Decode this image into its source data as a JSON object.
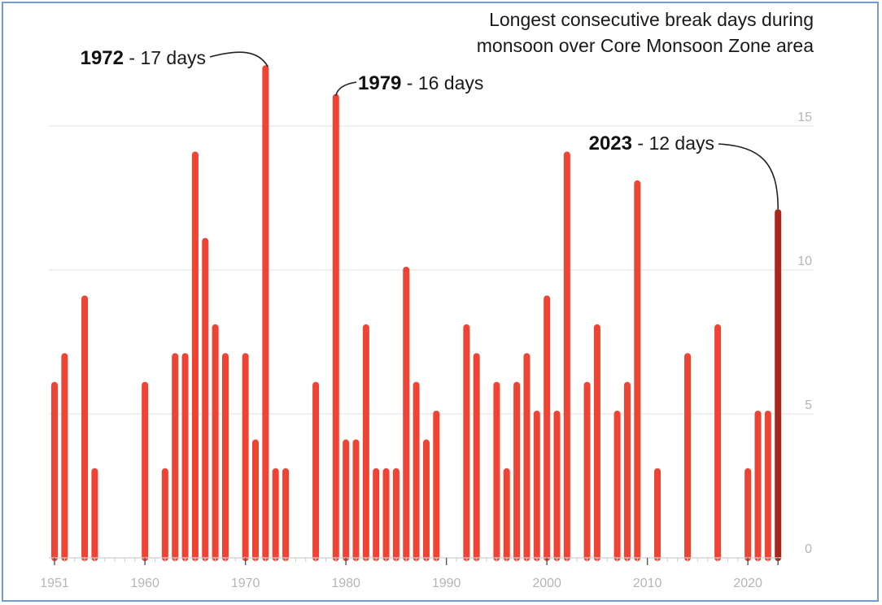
{
  "chart_data": {
    "type": "bar",
    "title_lines": [
      "Longest consecutive break days during",
      "monsoon over Core Monsoon Zone area"
    ],
    "xlabel": "",
    "ylabel": "",
    "xlim": [
      1951,
      2023
    ],
    "ylim": [
      0,
      17
    ],
    "x_ticks": [
      "1951",
      "1960",
      "1970",
      "1980",
      "1990",
      "2000",
      "2010",
      "2020"
    ],
    "y_ticks": [
      "0",
      "5",
      "10",
      "15"
    ],
    "grid": "horizontal",
    "colors": {
      "bar": "#ef4433",
      "highlight": "#a5281d",
      "grid": "#e6e6e6",
      "tick_text": "#b5b5b5",
      "frame": "#6e9ec9"
    },
    "highlight_year": 2023,
    "points": [
      {
        "x": 1951,
        "y": 6
      },
      {
        "x": 1952,
        "y": 7
      },
      {
        "x": 1954,
        "y": 9
      },
      {
        "x": 1955,
        "y": 3
      },
      {
        "x": 1960,
        "y": 6
      },
      {
        "x": 1962,
        "y": 3
      },
      {
        "x": 1963,
        "y": 7
      },
      {
        "x": 1964,
        "y": 7
      },
      {
        "x": 1965,
        "y": 14
      },
      {
        "x": 1966,
        "y": 11
      },
      {
        "x": 1967,
        "y": 8
      },
      {
        "x": 1968,
        "y": 7
      },
      {
        "x": 1970,
        "y": 7
      },
      {
        "x": 1971,
        "y": 4
      },
      {
        "x": 1972,
        "y": 17
      },
      {
        "x": 1973,
        "y": 3
      },
      {
        "x": 1974,
        "y": 3
      },
      {
        "x": 1977,
        "y": 6
      },
      {
        "x": 1979,
        "y": 16
      },
      {
        "x": 1980,
        "y": 4
      },
      {
        "x": 1981,
        "y": 4
      },
      {
        "x": 1982,
        "y": 8
      },
      {
        "x": 1983,
        "y": 3
      },
      {
        "x": 1984,
        "y": 3
      },
      {
        "x": 1985,
        "y": 3
      },
      {
        "x": 1986,
        "y": 10
      },
      {
        "x": 1987,
        "y": 6
      },
      {
        "x": 1988,
        "y": 4
      },
      {
        "x": 1989,
        "y": 5
      },
      {
        "x": 1992,
        "y": 8
      },
      {
        "x": 1993,
        "y": 7
      },
      {
        "x": 1995,
        "y": 6
      },
      {
        "x": 1996,
        "y": 3
      },
      {
        "x": 1997,
        "y": 6
      },
      {
        "x": 1998,
        "y": 7
      },
      {
        "x": 1999,
        "y": 5
      },
      {
        "x": 2000,
        "y": 9
      },
      {
        "x": 2001,
        "y": 5
      },
      {
        "x": 2002,
        "y": 14
      },
      {
        "x": 2004,
        "y": 6
      },
      {
        "x": 2005,
        "y": 8
      },
      {
        "x": 2007,
        "y": 5
      },
      {
        "x": 2008,
        "y": 6
      },
      {
        "x": 2009,
        "y": 13
      },
      {
        "x": 2011,
        "y": 3
      },
      {
        "x": 2014,
        "y": 7
      },
      {
        "x": 2017,
        "y": 8
      },
      {
        "x": 2020,
        "y": 3
      },
      {
        "x": 2021,
        "y": 5
      },
      {
        "x": 2022,
        "y": 5
      },
      {
        "x": 2023,
        "y": 12
      }
    ],
    "annotations": [
      {
        "x": 1972,
        "y": 17,
        "year": "1972",
        "text": " - 17 days"
      },
      {
        "x": 1979,
        "y": 16,
        "year": "1979",
        "text": " - 16 days"
      },
      {
        "x": 2023,
        "y": 12,
        "year": "2023",
        "text": " - 12 days"
      }
    ]
  }
}
